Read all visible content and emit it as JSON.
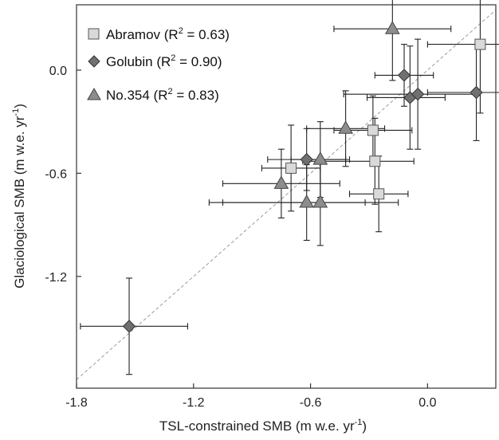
{
  "chart_data": {
    "type": "scatter",
    "xlabel_main": "TSL-constrained SMB (m w.e. yr",
    "xlabel_exp": "-1",
    "xlabel_end": ")",
    "ylabel_main": "Glaciological SMB (m w.e. yr",
    "ylabel_exp": "-1",
    "ylabel_end": ")",
    "xlim": [
      -1.8,
      0.35
    ],
    "ylim": [
      -1.85,
      0.38
    ],
    "x_ticks": [
      -1.8,
      -1.2,
      -0.6,
      0.0
    ],
    "x_tick_labels": [
      "-1.8",
      "-1.2",
      "-0.6",
      "0.0"
    ],
    "y_ticks": [
      0.0,
      -0.6,
      -1.2
    ],
    "y_tick_labels": [
      "0.0",
      "-0.6",
      "-1.2"
    ],
    "grid": false,
    "one_to_one_line": true,
    "legend_position": "top-left",
    "series": [
      {
        "name": "Abramov",
        "legend_label": "Abramov (R",
        "r2_text": " = 0.63)",
        "marker": "square",
        "color": "#d9d9d9",
        "points": [
          {
            "x": 0.27,
            "y": 0.15,
            "xerr_lo": 0.27,
            "xerr_hi": 0.1,
            "yerr_lo": 0.4,
            "yerr_hi": 0.38
          },
          {
            "x": -0.28,
            "y": -0.35,
            "xerr_lo": 0.2,
            "xerr_hi": 0.2,
            "yerr_lo": 0.2,
            "yerr_hi": 0.2
          },
          {
            "x": -0.27,
            "y": -0.53,
            "xerr_lo": 0.37,
            "xerr_hi": 0.2,
            "yerr_lo": 0.25,
            "yerr_hi": 0.25
          },
          {
            "x": -0.7,
            "y": -0.57,
            "xerr_lo": 0.15,
            "xerr_hi": 0.15,
            "yerr_lo": 0.25,
            "yerr_hi": 0.25
          },
          {
            "x": -0.25,
            "y": -0.72,
            "xerr_lo": 0.15,
            "xerr_hi": 0.15,
            "yerr_lo": 0.22,
            "yerr_hi": 0.22
          }
        ]
      },
      {
        "name": "Golubin",
        "legend_label": "Golubin (R",
        "r2_text": " = 0.90)",
        "marker": "diamond",
        "color": "#707070",
        "points": [
          {
            "x": -0.12,
            "y": -0.03,
            "xerr_lo": 0.15,
            "xerr_hi": 0.15,
            "yerr_lo": 0.18,
            "yerr_hi": 0.18
          },
          {
            "x": -0.09,
            "y": -0.16,
            "xerr_lo": 0.22,
            "xerr_hi": 0.18,
            "yerr_lo": 0.3,
            "yerr_hi": 0.3
          },
          {
            "x": -0.05,
            "y": -0.14,
            "xerr_lo": 0.38,
            "xerr_hi": 0.3,
            "yerr_lo": 0.32,
            "yerr_hi": 0.32
          },
          {
            "x": 0.25,
            "y": -0.13,
            "xerr_lo": 0.25,
            "xerr_hi": 0.15,
            "yerr_lo": 0.28,
            "yerr_hi": 0.28
          },
          {
            "x": -0.62,
            "y": -0.52,
            "xerr_lo": 0.2,
            "xerr_hi": 0.2,
            "yerr_lo": 0.18,
            "yerr_hi": 0.18
          },
          {
            "x": -1.53,
            "y": -1.49,
            "xerr_lo": 0.25,
            "xerr_hi": 0.3,
            "yerr_lo": 0.28,
            "yerr_hi": 0.28
          }
        ]
      },
      {
        "name": "No.354",
        "legend_label": "No.354 (R",
        "r2_text": " = 0.83)",
        "marker": "triangle",
        "color": "#8c8c8c",
        "points": [
          {
            "x": -0.18,
            "y": 0.24,
            "xerr_lo": 0.3,
            "xerr_hi": 0.3,
            "yerr_lo": 0.3,
            "yerr_hi": 0.3
          },
          {
            "x": -0.42,
            "y": -0.34,
            "xerr_lo": 0.2,
            "xerr_hi": 0.2,
            "yerr_lo": 0.22,
            "yerr_hi": 0.22
          },
          {
            "x": -0.55,
            "y": -0.52,
            "xerr_lo": 0.15,
            "xerr_hi": 0.15,
            "yerr_lo": 0.22,
            "yerr_hi": 0.22
          },
          {
            "x": -0.75,
            "y": -0.66,
            "xerr_lo": 0.3,
            "xerr_hi": 0.3,
            "yerr_lo": 0.2,
            "yerr_hi": 0.2
          },
          {
            "x": -0.62,
            "y": -0.77,
            "xerr_lo": 0.5,
            "xerr_hi": 0.3,
            "yerr_lo": 0.22,
            "yerr_hi": 0.22
          },
          {
            "x": -0.55,
            "y": -0.77,
            "xerr_lo": 0.5,
            "xerr_hi": 0.4,
            "yerr_lo": 0.25,
            "yerr_hi": 0.25
          }
        ]
      }
    ]
  },
  "legend": {
    "r2_sup": "2"
  }
}
